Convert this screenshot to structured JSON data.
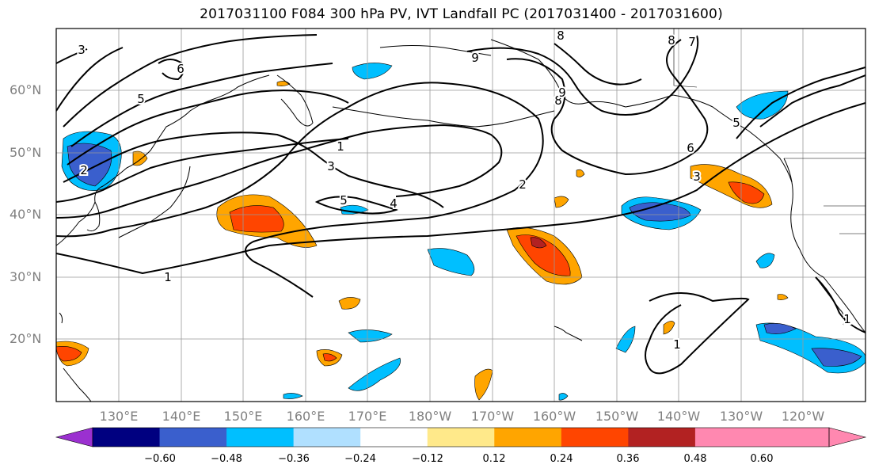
{
  "title": "2017031100 F084 300 hPa PV, IVT Landfall PC (2017031400 - 2017031600)",
  "lat_labels": [
    "60°N",
    "50°N",
    "40°N",
    "30°N",
    "20°N"
  ],
  "lon_labels": [
    "130°E",
    "140°E",
    "150°E",
    "160°E",
    "170°E",
    "180°W",
    "170°W",
    "160°W",
    "150°W",
    "140°W",
    "130°W",
    "120°W"
  ],
  "contour_labels": [
    "1",
    "1",
    "1",
    "1",
    "2",
    "2",
    "3",
    "3",
    "3",
    "4",
    "5",
    "5",
    "5",
    "6",
    "6",
    "7",
    "8",
    "8",
    "8",
    "9",
    "9"
  ],
  "colorbar": {
    "ticks": [
      "−0.60",
      "−0.48",
      "−0.36",
      "−0.24",
      "−0.12",
      "0.12",
      "0.24",
      "0.36",
      "0.48",
      "0.60"
    ],
    "colors": [
      "#9b30d0",
      "#000080",
      "#3a5fcd",
      "#00bfff",
      "#b0e0ff",
      "#ffffff",
      "#ffe98a",
      "#ffa500",
      "#ff4500",
      "#b22222",
      "#ff88b0",
      "#ff88b0"
    ]
  }
}
